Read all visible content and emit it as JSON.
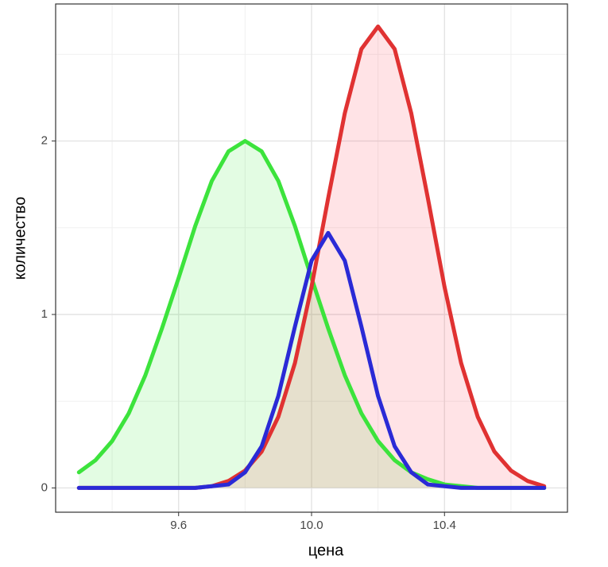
{
  "chart_data": {
    "type": "area_line",
    "xlabel": "цена",
    "ylabel": "количество",
    "x": [
      9.3,
      9.35,
      9.4,
      9.45,
      9.5,
      9.55,
      9.6,
      9.65,
      9.7,
      9.75,
      9.8,
      9.85,
      9.9,
      9.95,
      10.0,
      10.05,
      10.1,
      10.15,
      10.2,
      10.25,
      10.3,
      10.35,
      10.4,
      10.45,
      10.5,
      10.55,
      10.6,
      10.65,
      10.7
    ],
    "series": [
      {
        "color": "#3ce33c",
        "fill": "rgba(0,230,0,0.11)",
        "values": [
          0.09,
          0.16,
          0.27,
          0.43,
          0.65,
          0.92,
          1.21,
          1.51,
          1.77,
          1.94,
          2.0,
          1.94,
          1.77,
          1.51,
          1.21,
          0.92,
          0.65,
          0.43,
          0.27,
          0.16,
          0.09,
          0.05,
          0.02,
          0.01,
          0,
          0,
          0,
          0,
          0
        ]
      },
      {
        "color": "#e03232",
        "fill": "rgba(255,40,60,0.13)",
        "values": [
          0,
          0,
          0,
          0,
          0,
          0,
          0,
          0,
          0.01,
          0.04,
          0.1,
          0.21,
          0.41,
          0.72,
          1.16,
          1.67,
          2.16,
          2.53,
          2.66,
          2.53,
          2.16,
          1.67,
          1.16,
          0.72,
          0.41,
          0.21,
          0.1,
          0.04,
          0.01
        ]
      },
      {
        "color": "#2a2ad6",
        "values": [
          0,
          0,
          0,
          0,
          0,
          0,
          0,
          0,
          0.01,
          0.02,
          0.09,
          0.24,
          0.53,
          0.93,
          1.31,
          1.47,
          1.31,
          0.93,
          0.53,
          0.24,
          0.09,
          0.02,
          0.01,
          0,
          0,
          0,
          0,
          0,
          0
        ]
      }
    ],
    "xlim": [
      9.23,
      10.77
    ],
    "ylim": [
      -0.14,
      2.79
    ],
    "xticks": [
      9.6,
      {
        "value": 10.0,
        "label": "10.0"
      },
      10.4
    ],
    "yticks": [
      0,
      1,
      2
    ],
    "x_minor_ticks": [
      9.4,
      9.8,
      10.2,
      10.6
    ],
    "y_minor_ticks": [
      0.5,
      1.5,
      2.5
    ],
    "grid": true
  }
}
